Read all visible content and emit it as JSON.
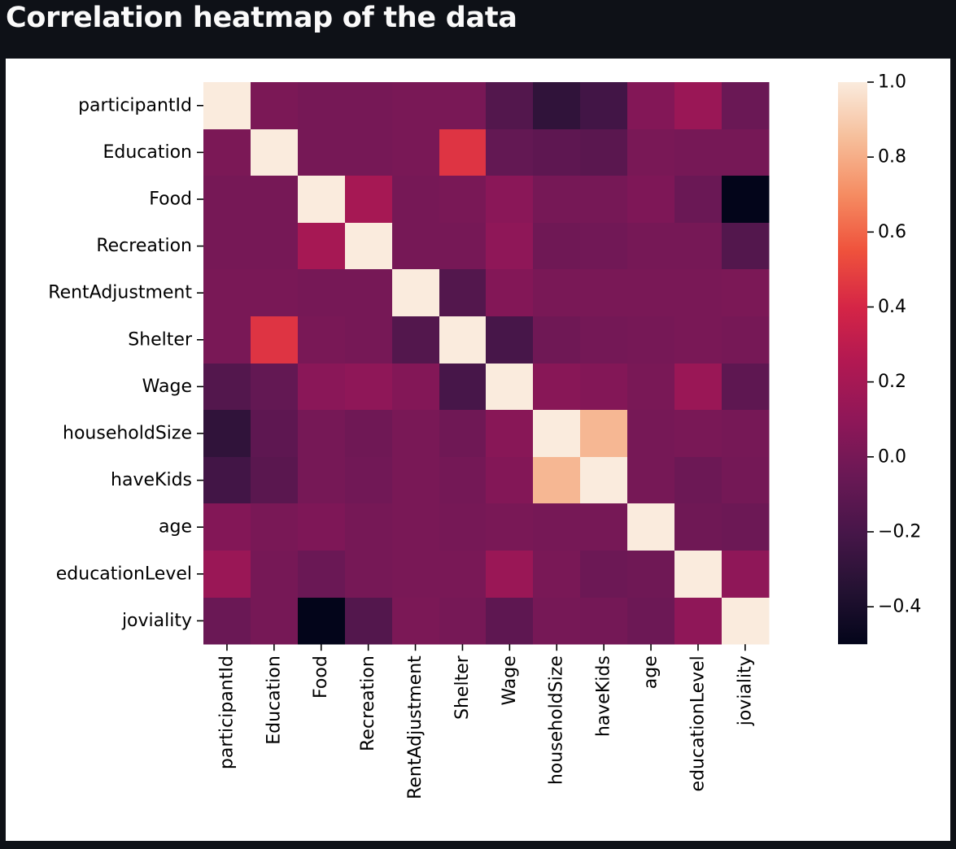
{
  "page": {
    "title": "Correlation heatmap of the data"
  },
  "colors": {
    "background": "#0e1117",
    "figure": "#ffffff",
    "title": "#fafafa",
    "colormap": "rocket"
  },
  "chart_data": {
    "type": "heatmap",
    "title": "",
    "xlabel": "",
    "ylabel": "",
    "x_categories": [
      "participantId",
      "Education",
      "Food",
      "Recreation",
      "RentAdjustment",
      "Shelter",
      "Wage",
      "householdSize",
      "haveKids",
      "age",
      "educationLevel",
      "joviality"
    ],
    "y_categories": [
      "participantId",
      "Education",
      "Food",
      "Recreation",
      "RentAdjustment",
      "Shelter",
      "Wage",
      "householdSize",
      "haveKids",
      "age",
      "educationLevel",
      "joviality"
    ],
    "values": [
      [
        1.0,
        0.02,
        0.0,
        0.0,
        0.01,
        0.01,
        -0.15,
        -0.3,
        -0.22,
        0.05,
        0.15,
        -0.05
      ],
      [
        0.02,
        1.0,
        0.0,
        0.0,
        0.01,
        0.45,
        -0.08,
        -0.1,
        -0.12,
        0.01,
        0.0,
        0.0
      ],
      [
        0.0,
        0.0,
        1.0,
        0.2,
        0.0,
        0.01,
        0.08,
        0.0,
        0.0,
        0.03,
        -0.05,
        -0.5
      ],
      [
        0.0,
        0.0,
        0.2,
        1.0,
        0.0,
        0.0,
        0.1,
        -0.03,
        -0.02,
        0.0,
        0.0,
        -0.15
      ],
      [
        0.01,
        0.01,
        0.0,
        0.0,
        1.0,
        -0.15,
        0.05,
        0.01,
        0.01,
        0.01,
        0.01,
        0.02
      ],
      [
        0.01,
        0.45,
        0.01,
        0.0,
        -0.15,
        1.0,
        -0.2,
        -0.03,
        -0.01,
        0.0,
        0.01,
        0.0
      ],
      [
        -0.15,
        -0.08,
        0.08,
        0.1,
        0.05,
        -0.2,
        1.0,
        0.07,
        0.05,
        0.01,
        0.15,
        -0.1
      ],
      [
        -0.3,
        -0.1,
        0.0,
        -0.03,
        0.01,
        -0.03,
        0.07,
        1.0,
        0.83,
        0.0,
        0.01,
        0.0
      ],
      [
        -0.22,
        -0.12,
        0.0,
        -0.02,
        0.01,
        -0.01,
        0.05,
        0.83,
        1.0,
        0.0,
        -0.04,
        -0.01
      ],
      [
        0.05,
        0.01,
        0.03,
        0.0,
        0.01,
        0.0,
        0.01,
        0.0,
        0.0,
        1.0,
        -0.03,
        -0.04
      ],
      [
        0.15,
        0.0,
        -0.05,
        0.0,
        0.01,
        0.01,
        0.15,
        0.01,
        -0.04,
        -0.03,
        1.0,
        0.1
      ],
      [
        -0.05,
        0.0,
        -0.5,
        -0.15,
        0.02,
        0.0,
        -0.1,
        0.0,
        -0.01,
        -0.04,
        0.1,
        1.0
      ]
    ],
    "colorbar": {
      "range": [
        -0.5,
        1.0
      ],
      "ticks": [
        1.0,
        0.8,
        0.6,
        0.4,
        0.2,
        0.0,
        -0.2,
        -0.4
      ],
      "tick_labels": [
        "1.0",
        "0.8",
        "0.6",
        "0.4",
        "0.2",
        "0.0",
        "−0.2",
        "−0.4"
      ]
    },
    "grid": false
  }
}
